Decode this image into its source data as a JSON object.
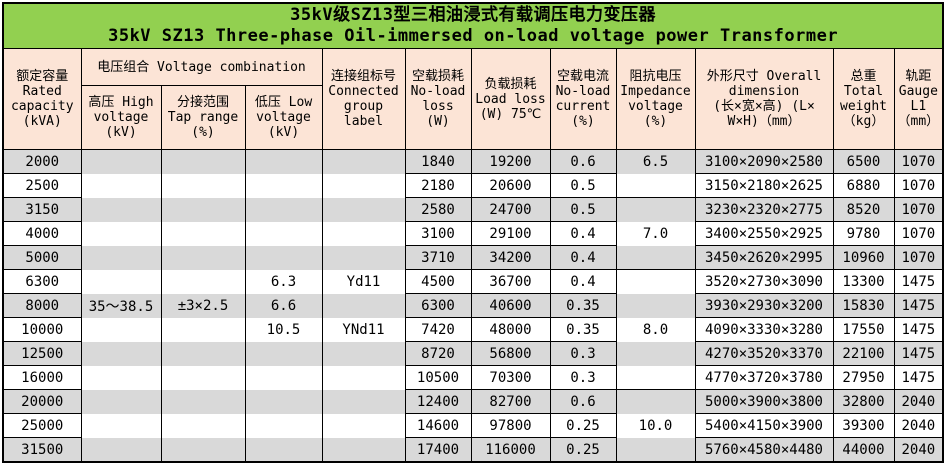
{
  "title": {
    "line1_zh": "35kV级SZ13型三相油浸式有载调压电力变压器",
    "line2_en": "35kV SZ13 Three-phase Oil-immersed on-load voltage power Transformer"
  },
  "header": {
    "capacity": "额定容量\nRated\ncapacity\n(kVA)",
    "voltage_combination": "电压组合 Voltage combination",
    "high_voltage": "高压 High\nvoltage\n(kV)",
    "tap_range": "分接范围\nTap range\n(%)",
    "low_voltage": "低压 Low\nvoltage\n(kV)",
    "connected_group": "连接组标号\nConnected\ngroup\nlabel",
    "no_load_loss": "空载损耗\nNo-load\nloss\n(W)",
    "load_loss": "负载损耗\nLoad loss\n(W) 75℃",
    "no_load_current": "空载电流\nNo-load\ncurrent\n(%)",
    "impedance_voltage": "阻抗电压\nImpedance\nvoltage\n(%)",
    "overall_dimension": "外形尺寸 Overall\ndimension\n(长×宽×高) (L×\nW×H)（mm）",
    "total_weight": "总重\nTotal\nweight\n（kg）",
    "gauge": "轨距\nGauge\nL1\n（mm）"
  },
  "colors": {
    "title_bg": "#92d050",
    "header_bg": "#fce4d6",
    "stripe_gray": "#d9d9d9",
    "stripe_white": "#ffffff",
    "border": "#000000"
  },
  "rows": [
    {
      "capacity": "2000",
      "hv": "",
      "tap": "",
      "lv": "",
      "group": "",
      "noload": "1840",
      "load": "19200",
      "current": "0.6",
      "impedance": "6.5",
      "dim": "3100×2090×2580",
      "weight": "6500",
      "gauge": "1070"
    },
    {
      "capacity": "2500",
      "hv": "",
      "tap": "",
      "lv": "",
      "group": "",
      "noload": "2180",
      "load": "20600",
      "current": "0.5",
      "impedance": "",
      "dim": "3150×2180×2625",
      "weight": "6880",
      "gauge": "1070"
    },
    {
      "capacity": "3150",
      "hv": "",
      "tap": "",
      "lv": "",
      "group": "",
      "noload": "2580",
      "load": "24700",
      "current": "0.5",
      "impedance": "",
      "dim": "3230×2320×2775",
      "weight": "8520",
      "gauge": "1070"
    },
    {
      "capacity": "4000",
      "hv": "",
      "tap": "",
      "lv": "",
      "group": "",
      "noload": "3100",
      "load": "29100",
      "current": "0.4",
      "impedance": "7.0",
      "dim": "3400×2550×2925",
      "weight": "9780",
      "gauge": "1070"
    },
    {
      "capacity": "5000",
      "hv": "",
      "tap": "",
      "lv": "",
      "group": "",
      "noload": "3710",
      "load": "34200",
      "current": "0.4",
      "impedance": "",
      "dim": "3450×2620×2995",
      "weight": "10960",
      "gauge": "1070"
    },
    {
      "capacity": "6300",
      "hv": "",
      "tap": "",
      "lv": "6.3",
      "group": "Yd11",
      "noload": "4500",
      "load": "36700",
      "current": "0.4",
      "impedance": "",
      "dim": "3520×2730×3090",
      "weight": "13300",
      "gauge": "1475"
    },
    {
      "capacity": "8000",
      "hv": "35～38.5",
      "tap": "±3×2.5",
      "lv": "6.6",
      "group": "",
      "noload": "6300",
      "load": "40600",
      "current": "0.35",
      "impedance": "",
      "dim": "3930×2930×3200",
      "weight": "15830",
      "gauge": "1475"
    },
    {
      "capacity": "10000",
      "hv": "",
      "tap": "",
      "lv": "10.5",
      "group": "YNd11",
      "noload": "7420",
      "load": "48000",
      "current": "0.35",
      "impedance": "8.0",
      "dim": "4090×3330×3280",
      "weight": "17550",
      "gauge": "1475"
    },
    {
      "capacity": "12500",
      "hv": "",
      "tap": "",
      "lv": "",
      "group": "",
      "noload": "8720",
      "load": "56800",
      "current": "0.3",
      "impedance": "",
      "dim": "4270×3520×3370",
      "weight": "22100",
      "gauge": "1475"
    },
    {
      "capacity": "16000",
      "hv": "",
      "tap": "",
      "lv": "",
      "group": "",
      "noload": "10500",
      "load": "70300",
      "current": "0.3",
      "impedance": "",
      "dim": "4770×3720×3780",
      "weight": "27950",
      "gauge": "1475"
    },
    {
      "capacity": "20000",
      "hv": "",
      "tap": "",
      "lv": "",
      "group": "",
      "noload": "12400",
      "load": "82700",
      "current": "0.6",
      "impedance": "",
      "dim": "5000×3900×3800",
      "weight": "32800",
      "gauge": "2040"
    },
    {
      "capacity": "25000",
      "hv": "",
      "tap": "",
      "lv": "",
      "group": "",
      "noload": "14600",
      "load": "97800",
      "current": "0.25",
      "impedance": "10.0",
      "dim": "5400×4150×3900",
      "weight": "39300",
      "gauge": "2040"
    },
    {
      "capacity": "31500",
      "hv": "",
      "tap": "",
      "lv": "",
      "group": "",
      "noload": "17400",
      "load": "116000",
      "current": "0.25",
      "impedance": "",
      "dim": "5760×4580×4480",
      "weight": "44000",
      "gauge": "2040"
    }
  ]
}
